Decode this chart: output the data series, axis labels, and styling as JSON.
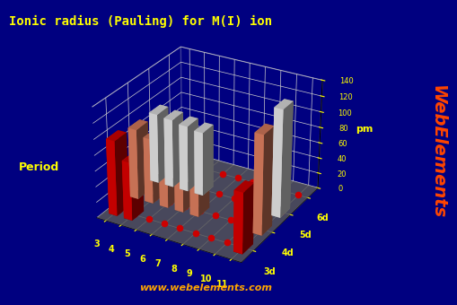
{
  "title": "Ionic radius (Pauling) for M(I) ion",
  "zlabel": "pm",
  "background_color": "#000080",
  "title_color": "#FFFF00",
  "tick_color": "#FFFF00",
  "watermark": "www.webelements.com",
  "watermark_color": "#FFA500",
  "webelements_color": "#FF4500",
  "period_label_color": "#FFFF00",
  "groups": [
    3,
    4,
    5,
    6,
    7,
    8,
    9,
    10,
    11
  ],
  "periods": [
    "3d",
    "4d",
    "5d",
    "6d"
  ],
  "zlim": [
    0,
    140
  ],
  "zticks": [
    0,
    20,
    40,
    60,
    80,
    100,
    120,
    140
  ],
  "data": {
    "3d": [
      96,
      74,
      0,
      0,
      0,
      0,
      0,
      0,
      77
    ],
    "4d": [
      90,
      83,
      78,
      75,
      73,
      0,
      0,
      0,
      126
    ],
    "5d": [
      90,
      88,
      85,
      82,
      0,
      0,
      0,
      0,
      137
    ],
    "6d": [
      0,
      0,
      0,
      0,
      0,
      0,
      0,
      0,
      0
    ]
  },
  "bar_colors": {
    "3d": "#DD0000",
    "4d": "#E08060",
    "5d": "#E8E8E8",
    "6d": "#EEEE88"
  },
  "floor_color": "#707070",
  "dot_color": "#CC0000",
  "grid_color": "#CCCCCC",
  "elev": 28,
  "azim": -60
}
